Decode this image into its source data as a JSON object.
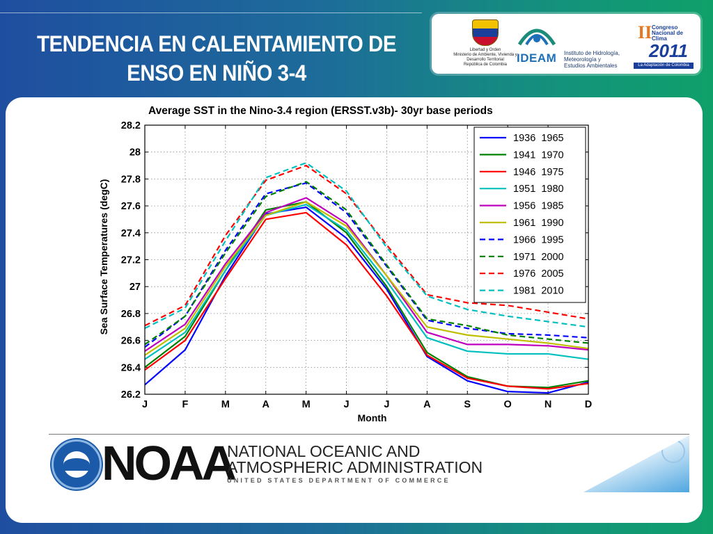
{
  "slide": {
    "title": "TENDENCIA EN CALENTAMIENTO DE ENSO EN NIÑO 3-4"
  },
  "logos": {
    "ministerio": "Libertad y Orden\nMinisterio de Ambiente, Vivienda y Desarrollo Territorial\nRepública de Colombia",
    "ideam_name": "IDEAM",
    "ideam_desc": "Instituto de Hidrología, Meteorología y Estudios Ambientales",
    "congreso_roman": "II",
    "congreso_text": "Congreso Nacional de Clima",
    "congreso_year": "2011",
    "congreso_tagline": "La Adaptación de Colombia"
  },
  "noaa": {
    "acronym": "NOAA",
    "full_name_line1": "NATIONAL OCEANIC AND",
    "full_name_line2": "ATMOSPHERIC ADMINISTRATION",
    "department": "UNITED STATES DEPARTMENT OF COMMERCE"
  },
  "chart_data": {
    "type": "line",
    "title": "Average SST in the Nino-3.4 region (ERSST.v3b)- 30yr base periods",
    "xlabel": "Month",
    "ylabel": "Sea Surface Temperatures (degC)",
    "categories": [
      "J",
      "F",
      "M",
      "A",
      "M",
      "J",
      "J",
      "A",
      "S",
      "O",
      "N",
      "D"
    ],
    "ylim": [
      26.2,
      28.2
    ],
    "yticks": [
      "26.2",
      "26.4",
      "26.6",
      "26.8",
      "27",
      "27.2",
      "27.4",
      "27.6",
      "27.8",
      "28",
      "28.2"
    ],
    "grid": true,
    "legend_position": "top-right",
    "series": [
      {
        "name": "1936  1965",
        "color": "#0000ff",
        "dash": false,
        "values": [
          26.27,
          26.53,
          27.08,
          27.54,
          27.59,
          27.36,
          26.98,
          26.48,
          26.3,
          26.22,
          26.21,
          26.29
        ]
      },
      {
        "name": "1941  1970",
        "color": "#008000",
        "dash": false,
        "values": [
          26.4,
          26.63,
          27.12,
          27.57,
          27.63,
          27.4,
          27.0,
          26.51,
          26.33,
          26.26,
          26.25,
          26.3
        ]
      },
      {
        "name": "1946  1975",
        "color": "#ff0000",
        "dash": false,
        "values": [
          26.38,
          26.6,
          27.06,
          27.5,
          27.55,
          27.31,
          26.93,
          26.49,
          26.32,
          26.26,
          26.24,
          26.28
        ]
      },
      {
        "name": "1951  1980",
        "color": "#00bfbf",
        "dash": false,
        "values": [
          26.46,
          26.66,
          27.12,
          27.53,
          27.61,
          27.42,
          27.04,
          26.62,
          26.52,
          26.5,
          26.5,
          26.46
        ]
      },
      {
        "name": "1956  1985",
        "color": "#bf00bf",
        "dash": false,
        "values": [
          26.52,
          26.72,
          27.17,
          27.55,
          27.66,
          27.47,
          27.08,
          26.66,
          26.57,
          26.57,
          26.56,
          26.53
        ]
      },
      {
        "name": "1961  1990",
        "color": "#bfbf00",
        "dash": false,
        "values": [
          26.49,
          26.69,
          27.15,
          27.53,
          27.63,
          27.45,
          27.08,
          26.7,
          26.64,
          26.61,
          26.58,
          26.54
        ]
      },
      {
        "name": "1966  1995",
        "color": "#0000ff",
        "dash": true,
        "values": [
          26.55,
          26.78,
          27.27,
          27.69,
          27.77,
          27.55,
          27.15,
          26.75,
          26.69,
          26.65,
          26.64,
          26.62
        ]
      },
      {
        "name": "1971  2000",
        "color": "#008000",
        "dash": true,
        "values": [
          26.57,
          26.78,
          27.25,
          27.67,
          27.78,
          27.57,
          27.16,
          26.76,
          26.71,
          26.64,
          26.61,
          26.58
        ]
      },
      {
        "name": "1976  2005",
        "color": "#ff0000",
        "dash": true,
        "values": [
          26.71,
          26.86,
          27.38,
          27.79,
          27.9,
          27.69,
          27.31,
          26.94,
          26.88,
          26.86,
          26.81,
          26.76
        ]
      },
      {
        "name": "1981  2010",
        "color": "#00bfbf",
        "dash": true,
        "values": [
          26.69,
          26.84,
          27.34,
          27.81,
          27.92,
          27.71,
          27.29,
          26.93,
          26.83,
          26.78,
          26.74,
          26.7
        ]
      }
    ]
  }
}
